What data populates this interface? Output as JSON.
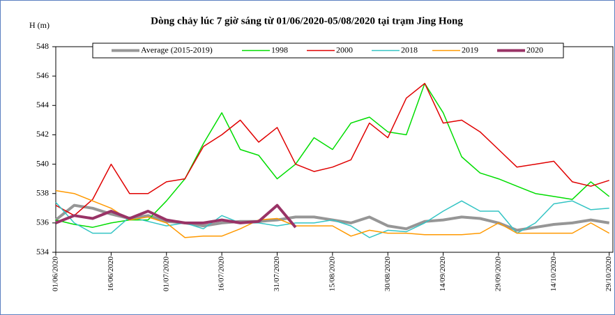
{
  "chart_data": {
    "type": "line",
    "title": "Dòng chảy lúc 7 giờ sáng từ 01/06/2020-05/08/2020 tại trạm Jing Hong",
    "y_label": "H (m)",
    "x": [
      "01/06/2020",
      "06/06/2020",
      "11/06/2020",
      "16/06/2020",
      "21/06/2020",
      "26/06/2020",
      "01/07/2020",
      "06/07/2020",
      "11/07/2020",
      "16/07/2020",
      "21/07/2020",
      "26/07/2020",
      "31/07/2020",
      "05/08/2020",
      "10/08/2020",
      "15/08/2020",
      "20/08/2020",
      "25/08/2020",
      "30/08/2020",
      "04/09/2020",
      "09/09/2020",
      "14/09/2020",
      "19/09/2020",
      "24/09/2020",
      "29/09/2020",
      "04/10/2020",
      "09/10/2020",
      "14/10/2020",
      "19/10/2020",
      "24/10/2020",
      "29/10/2020"
    ],
    "xlim": [
      "01/06/2020",
      "30/10/2020"
    ],
    "xticks": [
      "01/06/2020",
      "16/06/2020",
      "01/07/2020",
      "16/07/2020",
      "31/07/2020",
      "15/08/2020",
      "30/08/2020",
      "14/09/2020",
      "29/09/2020",
      "14/10/2020",
      "29/10/2020"
    ],
    "ylim": [
      534,
      548
    ],
    "yticks": [
      534,
      536,
      538,
      540,
      542,
      544,
      546,
      548
    ],
    "grid": false,
    "legend": "top",
    "series": [
      {
        "name": "Average (2015-2019)",
        "color": "#969696",
        "width": 4,
        "values": [
          536.2,
          537.2,
          537.0,
          536.6,
          536.3,
          536.5,
          536.1,
          536.0,
          535.8,
          536.0,
          536.1,
          536.1,
          536.2,
          536.4,
          536.4,
          536.2,
          536.0,
          536.4,
          535.8,
          535.6,
          536.1,
          536.2,
          536.4,
          536.3,
          536.0,
          535.5,
          535.7,
          535.9,
          536.0,
          536.2,
          536.0
        ]
      },
      {
        "name": "1998",
        "color": "#00dd00",
        "width": 1.5,
        "values": [
          536.2,
          535.9,
          535.7,
          536.0,
          536.2,
          536.2,
          537.5,
          539.0,
          541.4,
          543.5,
          541.0,
          540.6,
          539.0,
          540.0,
          541.8,
          541.0,
          542.8,
          543.2,
          542.2,
          542.0,
          545.5,
          543.5,
          540.5,
          539.4,
          539.0,
          538.5,
          538.0,
          537.8,
          537.6,
          538.8,
          537.8
        ]
      },
      {
        "name": "2000",
        "color": "#e00000",
        "width": 1.5,
        "values": [
          537.2,
          536.5,
          537.6,
          540.0,
          538.0,
          538.0,
          538.8,
          539.0,
          541.2,
          542.0,
          543.0,
          541.5,
          542.5,
          540.0,
          539.5,
          539.8,
          540.3,
          542.8,
          541.8,
          544.5,
          545.5,
          542.8,
          543.0,
          542.2,
          541.0,
          539.8,
          540.0,
          540.2,
          538.8,
          538.5,
          538.9
        ]
      },
      {
        "name": "2018",
        "color": "#33c4c4",
        "width": 1.5,
        "values": [
          537.4,
          536.0,
          535.3,
          535.3,
          536.4,
          536.1,
          535.8,
          536.0,
          535.6,
          536.5,
          536.0,
          536.0,
          535.8,
          536.0,
          536.0,
          536.2,
          535.8,
          535.0,
          535.5,
          535.4,
          536.0,
          536.8,
          537.5,
          536.8,
          536.8,
          535.3,
          536.0,
          537.3,
          537.5,
          536.9,
          537.0
        ]
      },
      {
        "name": "2019",
        "color": "#ff9900",
        "width": 1.5,
        "values": [
          538.2,
          538.0,
          537.5,
          537.0,
          536.2,
          536.4,
          536.0,
          535.0,
          535.1,
          535.1,
          535.6,
          536.2,
          536.3,
          535.8,
          535.8,
          535.8,
          535.1,
          535.5,
          535.3,
          535.3,
          535.2,
          535.2,
          535.2,
          535.3,
          536.0,
          535.3,
          535.3,
          535.3,
          535.3,
          536.0,
          535.3
        ]
      },
      {
        "name": "2020",
        "color": "#993366",
        "width": 4,
        "values": [
          536.0,
          536.5,
          536.3,
          536.8,
          536.3,
          536.8,
          536.2,
          536.0,
          536.0,
          536.2,
          536.0,
          536.1,
          537.2,
          535.7,
          null,
          null,
          null,
          null,
          null,
          null,
          null,
          null,
          null,
          null,
          null,
          null,
          null,
          null,
          null,
          null,
          null
        ]
      }
    ]
  }
}
